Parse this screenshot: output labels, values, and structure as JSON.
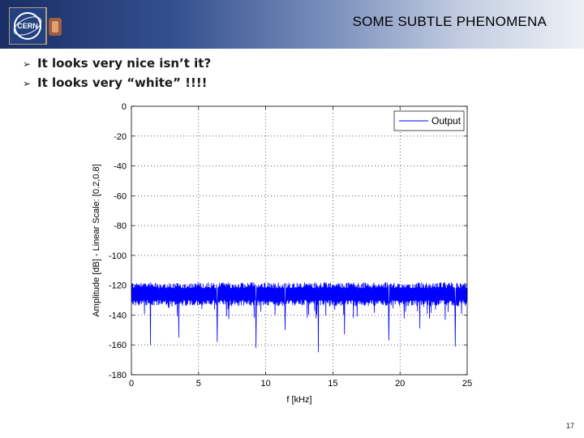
{
  "header": {
    "title": "SOME SUBTLE PHENOMENA",
    "logo_text": "CERN",
    "brand_color": "#1a2d66"
  },
  "bullets": [
    "It looks very nice isn’t it?",
    "It looks very “white” !!!!"
  ],
  "chart_data": {
    "type": "line",
    "xlabel": "f [kHz]",
    "ylabel": "Amplitude [dB] - Linear Scale: [0.2,0.8]",
    "xlim": [
      0,
      25
    ],
    "ylim": [
      -180,
      0
    ],
    "x_ticks": [
      "0",
      "5",
      "10",
      "15",
      "20",
      "25"
    ],
    "y_ticks": [
      "0",
      "-20",
      "-40",
      "-60",
      "-80",
      "-100",
      "-120",
      "-140",
      "-160",
      "-180"
    ],
    "grid": true,
    "legend_position": "top-right",
    "series": [
      {
        "name": "Output",
        "color": "#0000ff",
        "description_level": "noise floor",
        "mean_db": -124,
        "band_db": [
          -130,
          -118
        ],
        "deep_dips_db": [
          -160,
          -155,
          -158,
          -162,
          -150,
          -165,
          -153,
          -157,
          -149,
          -161
        ]
      }
    ]
  },
  "footer": {
    "page_number": "17"
  }
}
